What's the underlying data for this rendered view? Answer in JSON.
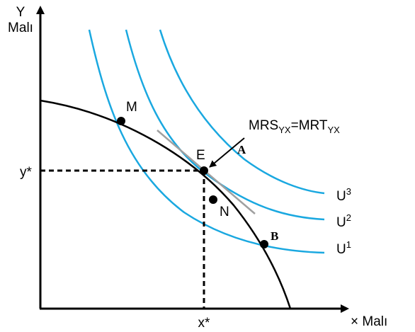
{
  "axes": {
    "y_label_line1": "Y",
    "y_label_line2": "Malı",
    "x_label": "× Malı",
    "y_star": "y*",
    "x_star": "x*"
  },
  "points": {
    "M": "M",
    "E": "E",
    "N": "N",
    "A": "A",
    "B": "B"
  },
  "equation": {
    "mrs": "MRS",
    "mrs_sub": "YX",
    "equals": "=",
    "mrt": "MRT",
    "mrt_sub": "YX"
  },
  "curves": {
    "u1_base": "U",
    "u1_sup": "1",
    "u2_base": "U",
    "u2_sup": "2",
    "u3_base": "U",
    "u3_sup": "3"
  },
  "colors": {
    "indifference": "#1aa8e0",
    "ppf": "#000000",
    "tangent": "#a0a0a0"
  }
}
